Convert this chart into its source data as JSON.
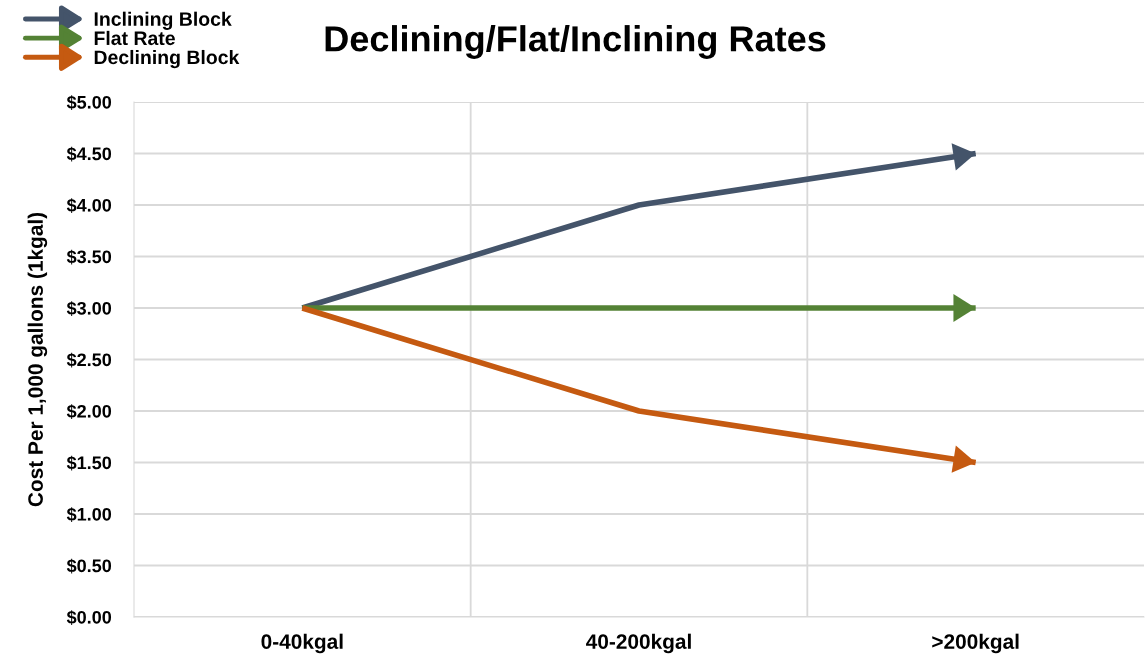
{
  "chart_data": {
    "type": "line",
    "title": "Declining/Flat/Inclining Rates",
    "ylabel": "Cost Per 1,000 gallons (1kgal)",
    "categories": [
      "0-40kgal",
      "40-200kgal",
      ">200kgal"
    ],
    "series": [
      {
        "name": "Inclining Block",
        "color": "#44546a",
        "values": [
          3.0,
          4.0,
          4.5
        ]
      },
      {
        "name": "Flat Rate",
        "color": "#548235",
        "values": [
          3.0,
          3.0,
          3.0
        ]
      },
      {
        "name": "Declining Block",
        "color": "#c55a11",
        "values": [
          3.0,
          2.0,
          1.5
        ]
      }
    ],
    "ylim": [
      0,
      5
    ],
    "yticks": [
      {
        "value": 0,
        "label": "$0.00"
      },
      {
        "value": 0.5,
        "label": "$0.50"
      },
      {
        "value": 1,
        "label": "$1.00"
      },
      {
        "value": 1.5,
        "label": "$1.50"
      },
      {
        "value": 2,
        "label": "$2.00"
      },
      {
        "value": 2.5,
        "label": "$2.50"
      },
      {
        "value": 3,
        "label": "$3.00"
      },
      {
        "value": 3.5,
        "label": "$3.50"
      },
      {
        "value": 4,
        "label": "$4.00"
      },
      {
        "value": 4.5,
        "label": "$4.50"
      },
      {
        "value": 5,
        "label": "$5.00"
      }
    ],
    "grid": true,
    "legend": "top left",
    "marker": "none",
    "line_style": "solid"
  }
}
